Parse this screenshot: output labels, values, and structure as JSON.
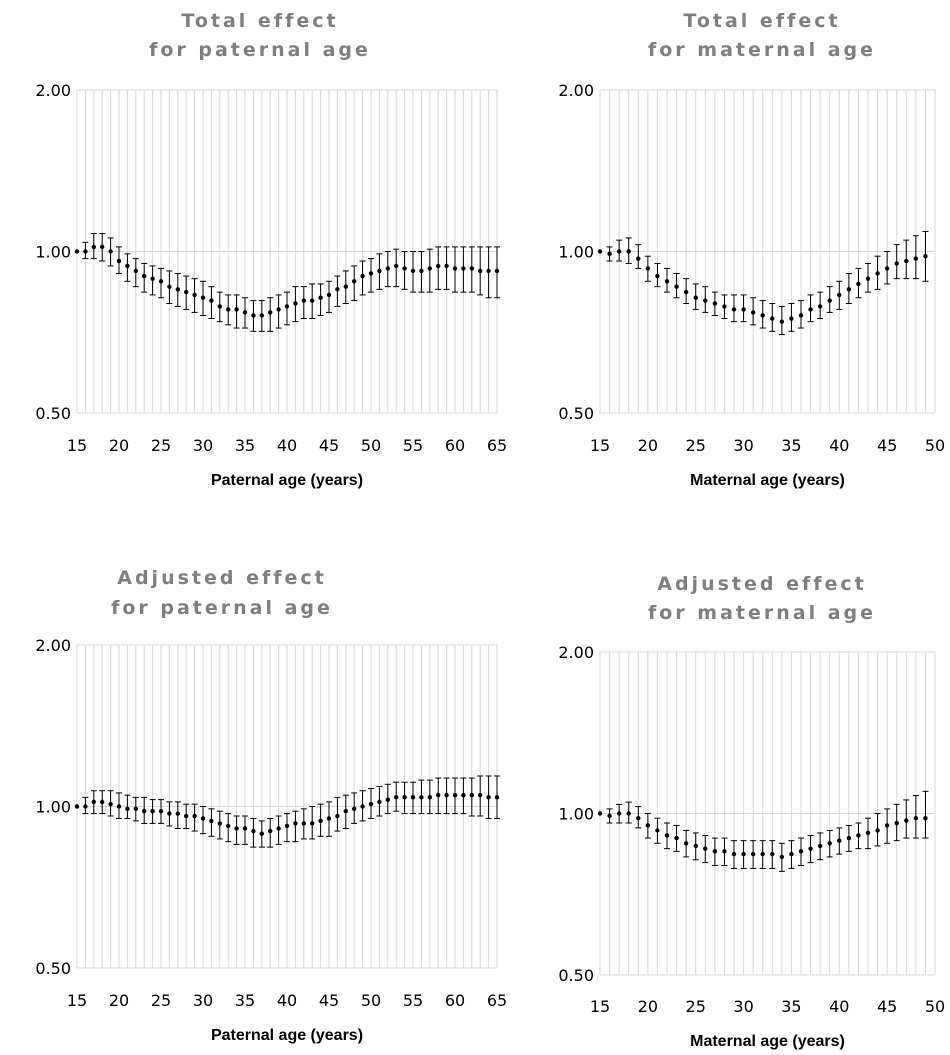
{
  "colors": {
    "grid": "#d9d9d9",
    "marker": "#000000",
    "title": "#7f7f7f"
  },
  "chart_data": [
    {
      "type": "scatter",
      "title_lines": [
        "Total effect",
        "for paternal age"
      ],
      "xlabel": "Paternal age (years)",
      "ylabel": "",
      "ylim": [
        0.5,
        2.0
      ],
      "y_scale": "log",
      "yticks": [
        "2.00",
        "1.00",
        "0.50"
      ],
      "xticks": [
        "15",
        "20",
        "25",
        "30",
        "35",
        "40",
        "45",
        "50",
        "55",
        "60",
        "65"
      ],
      "xlim": [
        15,
        65
      ],
      "grid": "vertical lines at each year, horizontal line at 1.00",
      "series": [
        {
          "x": [
            15,
            16,
            17,
            18,
            19,
            20,
            21,
            22,
            23,
            24,
            25,
            26,
            27,
            28,
            29,
            30,
            31,
            32,
            33,
            34,
            35,
            36,
            37,
            38,
            39,
            40,
            41,
            42,
            43,
            44,
            45,
            46,
            47,
            48,
            49,
            50,
            51,
            52,
            53,
            54,
            55,
            56,
            57,
            58,
            59,
            60,
            61,
            62,
            63,
            64,
            65
          ],
          "y": [
            1.0,
            1.0,
            1.02,
            1.02,
            1.0,
            0.96,
            0.94,
            0.92,
            0.9,
            0.89,
            0.88,
            0.86,
            0.85,
            0.84,
            0.83,
            0.82,
            0.81,
            0.79,
            0.78,
            0.78,
            0.77,
            0.76,
            0.76,
            0.77,
            0.78,
            0.79,
            0.8,
            0.81,
            0.81,
            0.82,
            0.83,
            0.85,
            0.86,
            0.88,
            0.9,
            0.91,
            0.92,
            0.93,
            0.94,
            0.93,
            0.92,
            0.92,
            0.93,
            0.94,
            0.94,
            0.93,
            0.93,
            0.93,
            0.92,
            0.92,
            0.92
          ],
          "lower": [
            1.0,
            0.97,
            0.97,
            0.96,
            0.94,
            0.91,
            0.88,
            0.86,
            0.84,
            0.83,
            0.82,
            0.8,
            0.79,
            0.78,
            0.77,
            0.76,
            0.75,
            0.74,
            0.73,
            0.72,
            0.72,
            0.71,
            0.71,
            0.71,
            0.72,
            0.73,
            0.74,
            0.75,
            0.75,
            0.76,
            0.77,
            0.79,
            0.8,
            0.81,
            0.83,
            0.84,
            0.85,
            0.86,
            0.86,
            0.85,
            0.84,
            0.84,
            0.84,
            0.85,
            0.85,
            0.84,
            0.84,
            0.84,
            0.83,
            0.82,
            0.82
          ],
          "upper": [
            1.0,
            1.04,
            1.08,
            1.08,
            1.06,
            1.02,
            0.99,
            0.97,
            0.95,
            0.94,
            0.93,
            0.92,
            0.91,
            0.9,
            0.89,
            0.88,
            0.86,
            0.84,
            0.83,
            0.83,
            0.82,
            0.81,
            0.81,
            0.82,
            0.83,
            0.84,
            0.86,
            0.86,
            0.87,
            0.87,
            0.88,
            0.9,
            0.92,
            0.94,
            0.96,
            0.97,
            0.99,
            1.0,
            1.01,
            1.0,
            1.0,
            1.0,
            1.01,
            1.02,
            1.02,
            1.02,
            1.02,
            1.02,
            1.02,
            1.02,
            1.02
          ]
        }
      ]
    },
    {
      "type": "scatter",
      "title_lines": [
        "Total effect",
        "for maternal age"
      ],
      "xlabel": "Maternal age (years)",
      "ylabel": "",
      "ylim": [
        0.5,
        2.0
      ],
      "y_scale": "log",
      "yticks": [
        "2.00",
        "1.00",
        "0.50"
      ],
      "xticks": [
        "15",
        "20",
        "25",
        "30",
        "35",
        "40",
        "45",
        "50"
      ],
      "xlim": [
        15,
        50
      ],
      "grid": "vertical lines at each year, horizontal line at 1.00",
      "series": [
        {
          "x": [
            15,
            16,
            17,
            18,
            19,
            20,
            21,
            22,
            23,
            24,
            25,
            26,
            27,
            28,
            29,
            30,
            31,
            32,
            33,
            34,
            35,
            36,
            37,
            38,
            39,
            40,
            41,
            42,
            43,
            44,
            45,
            46,
            47,
            48,
            49
          ],
          "y": [
            1.0,
            0.99,
            1.0,
            1.0,
            0.97,
            0.93,
            0.9,
            0.88,
            0.86,
            0.84,
            0.82,
            0.81,
            0.8,
            0.79,
            0.78,
            0.78,
            0.77,
            0.76,
            0.75,
            0.74,
            0.75,
            0.76,
            0.78,
            0.79,
            0.81,
            0.83,
            0.85,
            0.87,
            0.89,
            0.91,
            0.93,
            0.95,
            0.96,
            0.97,
            0.98
          ],
          "lower": [
            1.0,
            0.96,
            0.96,
            0.95,
            0.93,
            0.88,
            0.86,
            0.84,
            0.82,
            0.8,
            0.78,
            0.77,
            0.76,
            0.75,
            0.74,
            0.74,
            0.73,
            0.72,
            0.71,
            0.7,
            0.71,
            0.72,
            0.74,
            0.75,
            0.77,
            0.78,
            0.8,
            0.82,
            0.84,
            0.85,
            0.87,
            0.89,
            0.89,
            0.89,
            0.88
          ],
          "upper": [
            1.0,
            1.02,
            1.05,
            1.06,
            1.03,
            0.98,
            0.95,
            0.93,
            0.91,
            0.89,
            0.87,
            0.86,
            0.84,
            0.83,
            0.83,
            0.83,
            0.82,
            0.81,
            0.8,
            0.79,
            0.8,
            0.81,
            0.83,
            0.84,
            0.86,
            0.88,
            0.91,
            0.93,
            0.95,
            0.98,
            1.0,
            1.03,
            1.05,
            1.07,
            1.09
          ]
        }
      ]
    },
    {
      "type": "scatter",
      "title_lines": [
        "Adjusted effect",
        "for paternal age"
      ],
      "xlabel": "Paternal age (years)",
      "ylabel": "",
      "ylim": [
        0.5,
        2.0
      ],
      "y_scale": "log",
      "yticks": [
        "2.00",
        "1.00",
        "0.50"
      ],
      "xticks": [
        "15",
        "20",
        "25",
        "30",
        "35",
        "40",
        "45",
        "50",
        "55",
        "60",
        "65"
      ],
      "xlim": [
        15,
        65
      ],
      "grid": "vertical lines at each year, horizontal line at 1.00",
      "series": [
        {
          "x": [
            15,
            16,
            17,
            18,
            19,
            20,
            21,
            22,
            23,
            24,
            25,
            26,
            27,
            28,
            29,
            30,
            31,
            32,
            33,
            34,
            35,
            36,
            37,
            38,
            39,
            40,
            41,
            42,
            43,
            44,
            45,
            46,
            47,
            48,
            49,
            50,
            51,
            52,
            53,
            54,
            55,
            56,
            57,
            58,
            59,
            60,
            61,
            62,
            63,
            64,
            65
          ],
          "y": [
            1.0,
            1.0,
            1.02,
            1.02,
            1.01,
            1.0,
            0.99,
            0.99,
            0.98,
            0.98,
            0.98,
            0.97,
            0.97,
            0.96,
            0.96,
            0.95,
            0.94,
            0.93,
            0.92,
            0.91,
            0.91,
            0.9,
            0.89,
            0.9,
            0.91,
            0.92,
            0.93,
            0.93,
            0.93,
            0.94,
            0.95,
            0.96,
            0.98,
            0.99,
            1.0,
            1.01,
            1.02,
            1.03,
            1.04,
            1.04,
            1.04,
            1.04,
            1.04,
            1.05,
            1.05,
            1.05,
            1.05,
            1.05,
            1.05,
            1.04,
            1.04
          ],
          "lower": [
            1.0,
            0.97,
            0.97,
            0.97,
            0.96,
            0.95,
            0.95,
            0.94,
            0.93,
            0.93,
            0.93,
            0.92,
            0.91,
            0.91,
            0.9,
            0.89,
            0.88,
            0.87,
            0.86,
            0.85,
            0.85,
            0.84,
            0.84,
            0.84,
            0.85,
            0.86,
            0.86,
            0.87,
            0.87,
            0.88,
            0.88,
            0.9,
            0.91,
            0.93,
            0.94,
            0.95,
            0.96,
            0.97,
            0.98,
            0.97,
            0.97,
            0.97,
            0.97,
            0.97,
            0.97,
            0.97,
            0.97,
            0.96,
            0.96,
            0.95,
            0.95
          ],
          "upper": [
            1.0,
            1.04,
            1.07,
            1.07,
            1.07,
            1.06,
            1.05,
            1.04,
            1.04,
            1.03,
            1.03,
            1.02,
            1.02,
            1.01,
            1.01,
            1.0,
            0.99,
            0.98,
            0.97,
            0.96,
            0.96,
            0.95,
            0.94,
            0.95,
            0.96,
            0.97,
            0.98,
            0.99,
            1.0,
            1.01,
            1.02,
            1.04,
            1.05,
            1.06,
            1.07,
            1.08,
            1.09,
            1.1,
            1.11,
            1.11,
            1.11,
            1.12,
            1.12,
            1.13,
            1.13,
            1.13,
            1.13,
            1.13,
            1.14,
            1.14,
            1.14
          ]
        }
      ]
    },
    {
      "type": "scatter",
      "title_lines": [
        "Adjusted effect",
        "for maternal age"
      ],
      "xlabel": "Maternal age (years)",
      "ylabel": "",
      "ylim": [
        0.5,
        2.0
      ],
      "y_scale": "log",
      "yticks": [
        "2.00",
        "1.00",
        "0.50"
      ],
      "xticks": [
        "15",
        "20",
        "25",
        "30",
        "35",
        "40",
        "45",
        "50"
      ],
      "xlim": [
        15,
        50
      ],
      "grid": "vertical lines at each year, horizontal line at 1.00",
      "series": [
        {
          "x": [
            15,
            16,
            17,
            18,
            19,
            20,
            21,
            22,
            23,
            24,
            25,
            26,
            27,
            28,
            29,
            30,
            31,
            32,
            33,
            34,
            35,
            36,
            37,
            38,
            39,
            40,
            41,
            42,
            43,
            44,
            45,
            46,
            47,
            48,
            49
          ],
          "y": [
            1.0,
            0.99,
            1.0,
            1.0,
            0.98,
            0.95,
            0.93,
            0.91,
            0.9,
            0.88,
            0.87,
            0.86,
            0.85,
            0.85,
            0.84,
            0.84,
            0.84,
            0.84,
            0.84,
            0.83,
            0.84,
            0.85,
            0.86,
            0.87,
            0.88,
            0.89,
            0.9,
            0.91,
            0.92,
            0.93,
            0.95,
            0.96,
            0.97,
            0.98,
            0.98
          ],
          "lower": [
            1.0,
            0.96,
            0.96,
            0.96,
            0.94,
            0.9,
            0.88,
            0.86,
            0.85,
            0.83,
            0.82,
            0.81,
            0.8,
            0.8,
            0.79,
            0.79,
            0.79,
            0.79,
            0.79,
            0.78,
            0.79,
            0.8,
            0.81,
            0.82,
            0.83,
            0.84,
            0.85,
            0.86,
            0.86,
            0.87,
            0.88,
            0.89,
            0.9,
            0.9,
            0.9
          ],
          "upper": [
            1.0,
            1.02,
            1.04,
            1.05,
            1.03,
            1.0,
            0.98,
            0.96,
            0.95,
            0.93,
            0.92,
            0.91,
            0.9,
            0.9,
            0.89,
            0.89,
            0.89,
            0.89,
            0.89,
            0.88,
            0.89,
            0.9,
            0.91,
            0.92,
            0.93,
            0.94,
            0.95,
            0.96,
            0.98,
            1.0,
            1.02,
            1.04,
            1.06,
            1.08,
            1.1
          ]
        }
      ]
    }
  ]
}
